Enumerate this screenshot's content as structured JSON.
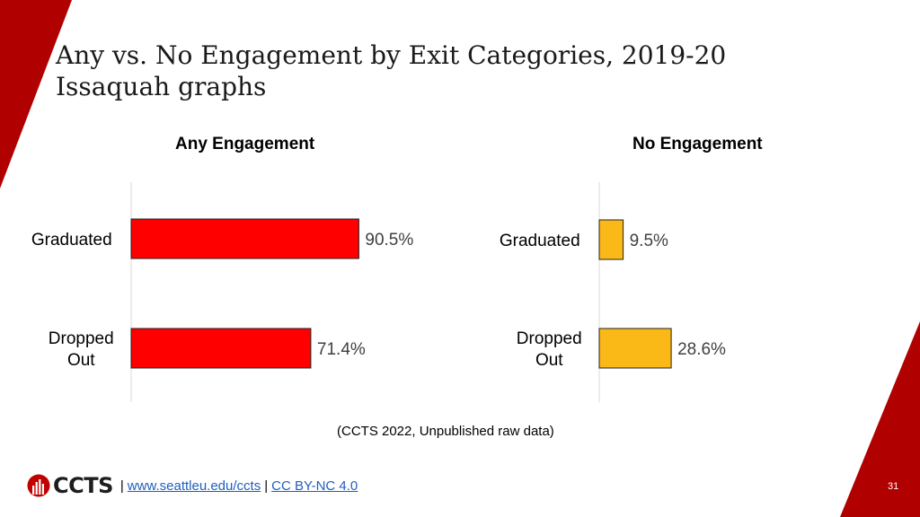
{
  "slide": {
    "title_line1": "Any vs. No Engagement by Exit Categories, 2019-20",
    "title_line2": "Issaquah graphs",
    "source": "(CCTS 2022, Unpublished raw data)",
    "page_number": "31",
    "accent_color": "#b00000"
  },
  "footer": {
    "logo_text": "CCTS",
    "separator": "|",
    "link1": "www.seattleu.edu/ccts",
    "link2": "CC BY-NC 4.0"
  },
  "chart_data": [
    {
      "type": "bar",
      "orientation": "horizontal",
      "title": "Any Engagement",
      "categories": [
        "Graduated",
        "Dropped Out"
      ],
      "values": [
        90.5,
        71.4
      ],
      "value_labels": [
        "90.5%",
        "71.4%"
      ],
      "bar_color": "#ff0000",
      "xlim": [
        0,
        100
      ],
      "grid": false,
      "legend": "none"
    },
    {
      "type": "bar",
      "orientation": "horizontal",
      "title": "No Engagement",
      "categories": [
        "Graduated",
        "Dropped Out"
      ],
      "values": [
        9.5,
        28.6
      ],
      "value_labels": [
        "9.5%",
        "28.6%"
      ],
      "bar_color": "#fbb917",
      "xlim": [
        0,
        100
      ],
      "grid": false,
      "legend": "none"
    }
  ]
}
